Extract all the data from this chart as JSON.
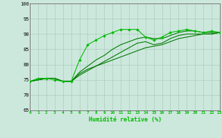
{
  "title": "",
  "xlabel": "Humidité relative (%)",
  "ylabel": "",
  "xlim": [
    0,
    23
  ],
  "ylim": [
    65,
    100
  ],
  "yticks": [
    65,
    70,
    75,
    80,
    85,
    90,
    95,
    100
  ],
  "xticks": [
    0,
    1,
    2,
    3,
    4,
    5,
    6,
    7,
    8,
    9,
    10,
    11,
    12,
    13,
    14,
    15,
    16,
    17,
    18,
    19,
    20,
    21,
    22,
    23
  ],
  "background_color": "#cce8dc",
  "grid_color": "#aacabb",
  "line_color_main": "#00bb00",
  "line_color_dark": "#007700",
  "series": [
    [
      74.5,
      75.5,
      75.5,
      75.0,
      74.5,
      74.5,
      81.5,
      86.5,
      88.0,
      89.5,
      90.5,
      91.5,
      91.5,
      91.5,
      89.0,
      88.0,
      89.0,
      90.5,
      91.0,
      91.5,
      91.0,
      90.5,
      91.0,
      90.5
    ],
    [
      74.5,
      75.0,
      75.5,
      75.5,
      74.5,
      74.5,
      77.0,
      78.5,
      79.5,
      80.5,
      81.5,
      82.5,
      83.5,
      84.5,
      85.5,
      86.0,
      86.5,
      87.5,
      88.5,
      89.0,
      89.5,
      90.0,
      90.0,
      90.5
    ],
    [
      74.5,
      75.0,
      75.5,
      75.5,
      74.5,
      74.5,
      77.5,
      79.5,
      81.5,
      83.0,
      85.0,
      86.5,
      87.5,
      88.5,
      89.0,
      88.5,
      88.5,
      89.5,
      90.5,
      91.0,
      91.0,
      90.5,
      90.5,
      90.5
    ],
    [
      74.5,
      75.0,
      75.5,
      75.5,
      74.5,
      74.5,
      76.5,
      78.0,
      79.5,
      81.0,
      82.5,
      84.0,
      85.5,
      87.0,
      87.5,
      86.5,
      87.0,
      88.5,
      89.5,
      90.0,
      90.0,
      90.0,
      90.0,
      90.5
    ]
  ]
}
